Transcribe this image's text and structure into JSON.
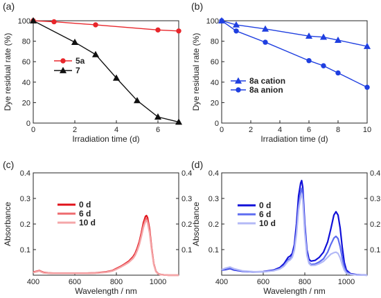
{
  "chart_data": [
    {
      "type": "line",
      "panel": "(a)",
      "xlabel": "Irradiation time (d)",
      "ylabel": "Dye residual rate (%)",
      "xlim": [
        0,
        7
      ],
      "ylim": [
        0,
        100
      ],
      "xticks": [
        0,
        2,
        4,
        6
      ],
      "yticks": [
        0,
        20,
        40,
        60,
        80,
        100
      ],
      "legend_position": "left-middle",
      "series": [
        {
          "name": "5a",
          "color": "#e8262b",
          "marker": "circle",
          "x": [
            0,
            1,
            3,
            6,
            7
          ],
          "y": [
            100,
            99,
            96,
            91,
            90
          ]
        },
        {
          "name": "7",
          "color": "#111111",
          "marker": "triangle",
          "x": [
            0,
            2,
            3,
            4,
            5,
            6,
            7
          ],
          "y": [
            100,
            79,
            67,
            44,
            22,
            6,
            1
          ]
        }
      ]
    },
    {
      "type": "line",
      "panel": "(b)",
      "xlabel": "Irradiation time (d)",
      "ylabel": "Dye residual rate (%)",
      "xlim": [
        0,
        10
      ],
      "ylim": [
        0,
        100
      ],
      "xticks": [
        0,
        2,
        4,
        6,
        8,
        10
      ],
      "yticks": [
        0,
        20,
        40,
        60,
        80,
        100
      ],
      "legend_position": "bottom-middle",
      "series": [
        {
          "name": "8a cation",
          "color": "#1f3fe0",
          "marker": "triangle",
          "x": [
            0,
            1,
            3,
            6,
            7,
            8,
            10
          ],
          "y": [
            100,
            96,
            92,
            85,
            84,
            81,
            75
          ]
        },
        {
          "name": "8a anion",
          "color": "#1f3fe0",
          "marker": "circle",
          "x": [
            0,
            1,
            3,
            6,
            7,
            8,
            10
          ],
          "y": [
            100,
            90,
            79,
            61,
            56,
            49,
            35
          ]
        }
      ]
    },
    {
      "type": "line",
      "panel": "(c)",
      "xlabel": "Wavelength / nm",
      "ylabel": "Absorbance",
      "xlim": [
        400,
        1100
      ],
      "ylim": [
        0,
        0.4
      ],
      "xticks": [
        400,
        600,
        800,
        1000
      ],
      "yticks": [
        0.1,
        0.2,
        0.3,
        0.4
      ],
      "legend_position": "top-left",
      "series": [
        {
          "name": "0 d",
          "color": "#e0121a",
          "x": [
            400,
            410,
            420,
            430,
            440,
            450,
            470,
            500,
            550,
            600,
            650,
            700,
            750,
            780,
            800,
            820,
            840,
            860,
            880,
            890,
            900,
            910,
            920,
            930,
            940,
            945,
            950,
            960,
            970,
            980,
            990,
            1000,
            1010,
            1030,
            1050,
            1100
          ],
          "y": [
            0.012,
            0.014,
            0.016,
            0.018,
            0.014,
            0.011,
            0.009,
            0.008,
            0.008,
            0.008,
            0.008,
            0.009,
            0.013,
            0.018,
            0.026,
            0.034,
            0.044,
            0.055,
            0.072,
            0.085,
            0.105,
            0.13,
            0.165,
            0.205,
            0.23,
            0.233,
            0.225,
            0.18,
            0.105,
            0.045,
            0.016,
            0.006,
            0.003,
            0.001,
            0,
            0
          ]
        },
        {
          "name": "6 d",
          "color": "#ee6a6e",
          "x": [
            400,
            410,
            420,
            430,
            440,
            450,
            470,
            500,
            550,
            600,
            650,
            700,
            750,
            780,
            800,
            820,
            840,
            860,
            880,
            890,
            900,
            910,
            920,
            930,
            940,
            945,
            950,
            960,
            970,
            980,
            990,
            1000,
            1010,
            1030,
            1050,
            1100
          ],
          "y": [
            0.011,
            0.013,
            0.015,
            0.017,
            0.013,
            0.01,
            0.008,
            0.007,
            0.007,
            0.007,
            0.007,
            0.008,
            0.012,
            0.017,
            0.024,
            0.032,
            0.042,
            0.052,
            0.068,
            0.08,
            0.099,
            0.123,
            0.157,
            0.195,
            0.219,
            0.222,
            0.214,
            0.171,
            0.1,
            0.043,
            0.015,
            0.006,
            0.003,
            0.001,
            0,
            0
          ]
        },
        {
          "name": "10 d",
          "color": "#f4a6a8",
          "x": [
            400,
            410,
            420,
            430,
            440,
            450,
            470,
            500,
            550,
            600,
            650,
            700,
            750,
            780,
            800,
            820,
            840,
            860,
            880,
            890,
            900,
            910,
            920,
            930,
            940,
            945,
            950,
            960,
            970,
            980,
            990,
            1000,
            1010,
            1030,
            1050,
            1100
          ],
          "y": [
            0.01,
            0.012,
            0.014,
            0.016,
            0.012,
            0.009,
            0.008,
            0.007,
            0.007,
            0.007,
            0.007,
            0.008,
            0.011,
            0.016,
            0.023,
            0.031,
            0.04,
            0.05,
            0.065,
            0.077,
            0.095,
            0.118,
            0.15,
            0.186,
            0.21,
            0.213,
            0.205,
            0.164,
            0.096,
            0.041,
            0.014,
            0.005,
            0.002,
            0.001,
            0,
            0
          ]
        }
      ]
    },
    {
      "type": "line",
      "panel": "(d)",
      "xlabel": "Wavelength / nm",
      "ylabel": "Absorbance",
      "xlim": [
        400,
        1100
      ],
      "ylim": [
        0,
        0.4
      ],
      "xticks": [
        400,
        600,
        800,
        1000
      ],
      "yticks": [
        0.1,
        0.2,
        0.3,
        0.4
      ],
      "legend_position": "top-left",
      "series": [
        {
          "name": "0 d",
          "color": "#1010d8",
          "x": [
            400,
            420,
            440,
            460,
            500,
            550,
            600,
            650,
            680,
            700,
            720,
            730,
            740,
            750,
            760,
            770,
            780,
            785,
            790,
            800,
            810,
            820,
            830,
            850,
            870,
            890,
            910,
            925,
            940,
            950,
            960,
            970,
            980,
            990,
            1000,
            1020,
            1050,
            1100
          ],
          "y": [
            0.02,
            0.022,
            0.026,
            0.02,
            0.015,
            0.013,
            0.014,
            0.02,
            0.03,
            0.045,
            0.07,
            0.075,
            0.085,
            0.12,
            0.2,
            0.31,
            0.36,
            0.37,
            0.345,
            0.2,
            0.1,
            0.062,
            0.055,
            0.058,
            0.07,
            0.09,
            0.13,
            0.18,
            0.235,
            0.248,
            0.235,
            0.185,
            0.11,
            0.05,
            0.02,
            0.006,
            0.002,
            0
          ]
        },
        {
          "name": "6 d",
          "color": "#5d6cf0",
          "x": [
            400,
            420,
            440,
            460,
            500,
            550,
            600,
            650,
            680,
            700,
            720,
            730,
            740,
            750,
            760,
            770,
            780,
            785,
            790,
            800,
            810,
            820,
            830,
            850,
            870,
            890,
            910,
            925,
            940,
            950,
            960,
            970,
            980,
            990,
            1000,
            1020,
            1050,
            1100
          ],
          "y": [
            0.02,
            0.024,
            0.028,
            0.022,
            0.016,
            0.013,
            0.013,
            0.018,
            0.026,
            0.038,
            0.06,
            0.065,
            0.075,
            0.105,
            0.17,
            0.27,
            0.325,
            0.34,
            0.315,
            0.18,
            0.085,
            0.05,
            0.042,
            0.044,
            0.052,
            0.064,
            0.09,
            0.12,
            0.145,
            0.152,
            0.143,
            0.112,
            0.068,
            0.032,
            0.013,
            0.004,
            0.001,
            0
          ]
        },
        {
          "name": "10 d",
          "color": "#b3b9f6",
          "x": [
            400,
            420,
            440,
            460,
            500,
            550,
            600,
            650,
            680,
            700,
            720,
            730,
            740,
            750,
            760,
            770,
            780,
            785,
            790,
            800,
            810,
            820,
            830,
            850,
            870,
            890,
            910,
            925,
            940,
            950,
            960,
            970,
            980,
            990,
            1000,
            1020,
            1050,
            1100
          ],
          "y": [
            0.022,
            0.028,
            0.032,
            0.025,
            0.017,
            0.014,
            0.013,
            0.017,
            0.024,
            0.035,
            0.055,
            0.06,
            0.07,
            0.098,
            0.16,
            0.255,
            0.305,
            0.318,
            0.295,
            0.165,
            0.078,
            0.046,
            0.038,
            0.039,
            0.045,
            0.054,
            0.07,
            0.082,
            0.088,
            0.09,
            0.085,
            0.068,
            0.042,
            0.02,
            0.008,
            0.003,
            0.001,
            0
          ]
        }
      ]
    }
  ]
}
